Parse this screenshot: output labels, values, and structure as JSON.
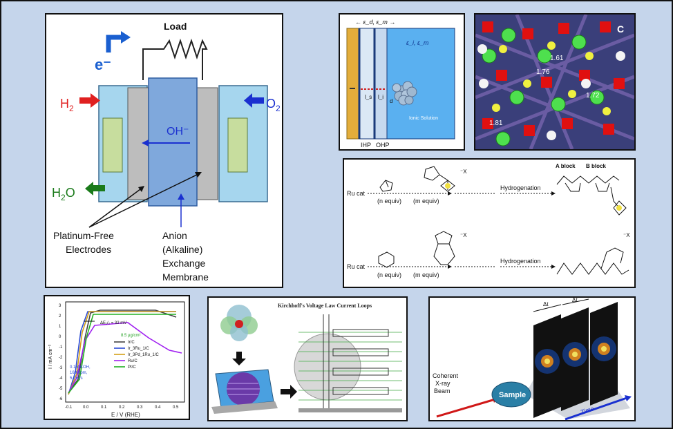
{
  "fuel_cell": {
    "load_label": "Load",
    "electron_label": "e⁻",
    "h2_label": "H",
    "h2_sub": "2",
    "o2_label": "O",
    "o2_sub": "2",
    "h2o_label_h": "H",
    "h2o_sub": "2",
    "h2o_label_o": "O",
    "oh_label": "OH⁻",
    "electrodes_label_1": "Platinum-Free",
    "electrodes_label_2": "Electrodes",
    "membrane_label_1": "Anion",
    "membrane_label_2": "(Alkaline)",
    "membrane_label_3": "Exchange",
    "membrane_label_4": "Membrane"
  },
  "double_layer": {
    "top_label": "← ε_d, ε_m →",
    "ionic_eps": "ε_i, ε_m",
    "ionic_label": "Ionic Solution",
    "ihp": "IHP",
    "ohp": "OHP",
    "ls": "l_s",
    "li": "l_i",
    "d": "d"
  },
  "crystal": {
    "corner_label": "C",
    "d1": "1.61",
    "d2": "1.76",
    "d3": "1.72",
    "d4": "1.81"
  },
  "polymer": {
    "ru_cat_1": "Ru cat",
    "ru_cat_2": "Ru cat",
    "n_equiv_1": "(n equiv)",
    "m_equiv_1": "(m equiv)",
    "n_equiv_2": "(n equiv)",
    "m_equiv_2": "(m equiv)",
    "hydro_1": "Hydrogenation",
    "hydro_2": "Hydrogenation",
    "a_block": "A block",
    "b_block": "B block",
    "x_anion": "⁻X"
  },
  "polarization": {
    "ylabel": "I / mA cm⁻²",
    "xlabel": "E / V (RHE)",
    "delta_e": "ΔE₁/₂ = 32 mV",
    "loading": "8.5 μg/cm²",
    "conditions_1": "0.1M KOH,",
    "conditions_2": "1600rpm,",
    "conditions_3": "5 mV/s",
    "x_ticks": [
      "-0.1",
      "0.0",
      "0.1",
      "0.2",
      "0.3",
      "0.4",
      "0.5"
    ],
    "y_ticks": [
      "3",
      "2",
      "1",
      "0",
      "-1",
      "-2",
      "-3",
      "-4",
      "-5",
      "-6"
    ],
    "legend": [
      {
        "name": "Ir/C",
        "color": "#444444"
      },
      {
        "name": "Ir_3Ru_1/C",
        "color": "#2b4bd6"
      },
      {
        "name": "Ir_3Pd_1Ru_1/C",
        "color": "#d4a017"
      },
      {
        "name": "Ru/C",
        "color": "#a020f0"
      },
      {
        "name": "Pt/C",
        "color": "#22b022"
      }
    ]
  },
  "kirchhoff": {
    "title": "Kirchhoff's Voltage Law Current Loops"
  },
  "xray": {
    "coherent_1": "Coherent",
    "coherent_2": "X-ray",
    "coherent_3": "Beam",
    "sample": "Sample",
    "time": "Time",
    "dt1": "Δt",
    "dt2": "Δt"
  }
}
